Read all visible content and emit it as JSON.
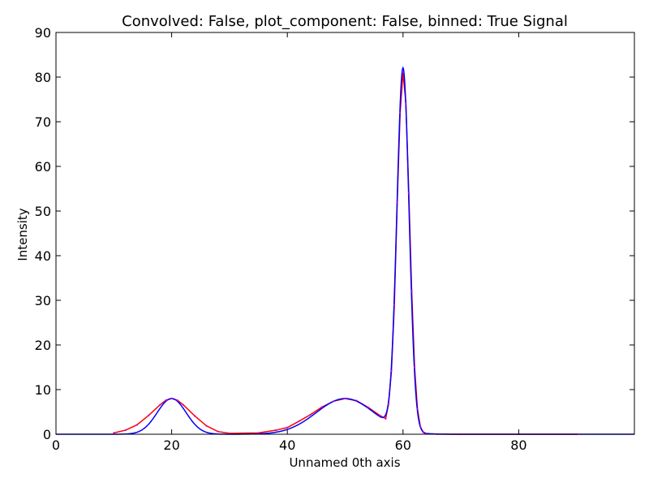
{
  "chart_data": {
    "type": "line",
    "title": "Convolved: False, plot_component: False, binned: True Signal",
    "xlabel": "Unnamed 0th axis",
    "ylabel": "Intensity",
    "xlim": [
      0,
      100
    ],
    "ylim": [
      0,
      90
    ],
    "x_ticks": [
      0,
      20,
      40,
      60,
      80
    ],
    "y_ticks": [
      0,
      10,
      20,
      30,
      40,
      50,
      60,
      70,
      80,
      90
    ],
    "grid": false,
    "legend": "none",
    "model": {
      "color": "#0000ff",
      "peaks": [
        {
          "center": 20,
          "height": 8,
          "sigma": 2.5
        },
        {
          "center": 50,
          "height": 8,
          "sigma": 5
        },
        {
          "center": 60,
          "height": 81,
          "sigma": 1.05
        }
      ]
    },
    "signal": {
      "color": "#ff0000",
      "marker_color": "#cc00cc",
      "x": [
        10,
        12,
        14,
        16,
        18,
        19,
        20,
        21,
        22,
        24,
        26,
        28,
        30,
        35,
        38,
        40,
        42,
        44,
        46,
        48,
        50,
        52,
        54,
        56,
        57,
        57.5,
        58,
        58.5,
        59,
        59.5,
        60,
        60.5,
        61,
        61.5,
        62,
        62.5,
        63,
        63.5,
        64,
        66,
        70,
        80,
        90
      ],
      "y": [
        0.3,
        0.9,
        2.1,
        4.2,
        6.6,
        7.6,
        8.0,
        7.6,
        6.6,
        4.1,
        1.9,
        0.6,
        0.2,
        0.3,
        0.9,
        1.5,
        2.9,
        4.4,
        6.1,
        7.4,
        8.0,
        7.5,
        6.0,
        4.2,
        3.5,
        6.8,
        14.2,
        29.0,
        52.0,
        72.0,
        81.0,
        74.0,
        54.0,
        32.0,
        15.0,
        5.6,
        1.7,
        0.4,
        0.1,
        0.02,
        0.0,
        0.0,
        0.0
      ]
    }
  }
}
